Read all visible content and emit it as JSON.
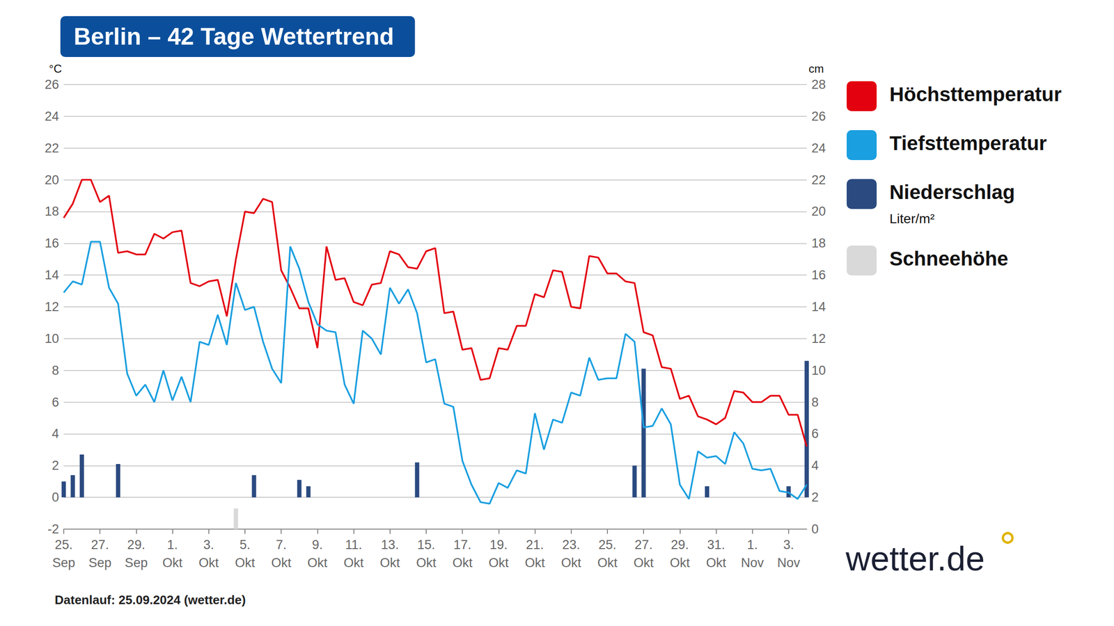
{
  "chart_data": {
    "type": "line",
    "title": "Berlin – 42 Tage Wettertrend",
    "annotations": [
      "Datenlauf: 25.09.2024 (wetter.de)",
      "wetter.de"
    ],
    "ylabel": "°C",
    "y2label": "cm",
    "categories": [
      "25.\nSep",
      null,
      null,
      null,
      "27.\nSep",
      null,
      null,
      null,
      "29.\nSep",
      null,
      null,
      null,
      "1.\nOkt",
      null,
      null,
      null,
      "3.\nOkt",
      null,
      null,
      null,
      "5.\nOkt",
      null,
      null,
      null,
      "7.\nOkt",
      null,
      null,
      null,
      "9.\nOkt",
      null,
      null,
      null,
      "11.\nOkt",
      null,
      null,
      null,
      "13.\nOkt",
      null,
      null,
      null,
      "15.\nOkt",
      null,
      null,
      null,
      "17.\nOkt",
      null,
      null,
      null,
      "19.\nOkt",
      null,
      null,
      null,
      "21.\nOkt",
      null,
      null,
      null,
      "23.\nOkt",
      null,
      null,
      null,
      "25.\nOkt",
      null,
      null,
      null,
      "27.\nOkt",
      null,
      null,
      null,
      "29.\nOkt",
      null,
      null,
      null,
      "31.\nOkt",
      null,
      null,
      null,
      "1.\nNov",
      null,
      null,
      null,
      "3.\nNov",
      null,
      null
    ],
    "series": [
      {
        "name": "Niederschlag",
        "unit": "Liter/m²",
        "type": "bar",
        "color": "#2a4a80",
        "values": [
          1.0,
          1.4,
          2.7,
          null,
          null,
          null,
          2.1,
          null,
          null,
          null,
          null,
          null,
          null,
          null,
          null,
          null,
          null,
          null,
          null,
          null,
          null,
          1.4,
          null,
          null,
          null,
          null,
          1.1,
          0.7,
          null,
          null,
          null,
          null,
          null,
          null,
          null,
          null,
          null,
          null,
          null,
          2.2,
          null,
          null,
          null,
          null,
          null,
          null,
          null,
          null,
          null,
          null,
          null,
          null,
          null,
          null,
          null,
          null,
          null,
          null,
          null,
          null,
          null,
          null,
          null,
          2.0,
          8.1,
          null,
          null,
          null,
          null,
          null,
          null,
          0.7,
          null,
          null,
          null,
          null,
          null,
          null,
          null,
          null,
          0.7,
          null,
          8.6
        ]
      },
      {
        "name": "Schneehöhe",
        "type": "bar",
        "color": "#d9d9d9",
        "axis": "y2",
        "values": [
          null,
          null,
          null,
          null,
          null,
          null,
          null,
          null,
          null,
          null,
          null,
          null,
          null,
          null,
          null,
          null,
          null,
          null,
          null,
          1.3,
          null,
          null,
          null,
          null,
          null,
          null,
          null,
          null,
          null,
          null,
          null,
          null,
          null,
          null,
          null,
          null,
          null,
          null,
          null,
          null,
          null,
          null,
          null,
          null,
          null,
          null,
          null,
          null,
          null,
          null,
          null,
          null,
          null,
          null,
          null,
          null,
          null,
          null,
          null,
          null,
          null,
          null,
          null,
          null,
          null,
          null,
          null,
          null,
          null,
          null,
          null,
          null,
          null,
          null,
          null,
          null,
          null,
          null,
          null,
          null,
          null,
          null,
          null
        ]
      },
      {
        "name": "Höchsttemperatur",
        "type": "line",
        "color": "#e3000f",
        "values": [
          17.6,
          18.5,
          20.0,
          20.0,
          18.6,
          19.0,
          15.4,
          15.5,
          15.3,
          15.3,
          16.6,
          16.3,
          16.7,
          16.8,
          13.5,
          13.3,
          13.6,
          13.7,
          11.4,
          15.0,
          18.0,
          17.9,
          18.8,
          18.6,
          14.3,
          13.2,
          11.9,
          11.9,
          9.4,
          15.8,
          13.7,
          13.8,
          12.3,
          12.1,
          13.4,
          13.5,
          15.5,
          15.3,
          14.5,
          14.4,
          15.5,
          15.7,
          11.6,
          11.7,
          9.3,
          9.4,
          7.4,
          7.5,
          9.4,
          9.3,
          10.8,
          10.8,
          12.8,
          12.6,
          14.3,
          14.2,
          12.0,
          11.9,
          15.2,
          15.1,
          14.1,
          14.1,
          13.6,
          13.5,
          10.4,
          10.2,
          8.2,
          8.1,
          6.2,
          6.4,
          5.1,
          4.9,
          4.6,
          5.0,
          6.7,
          6.6,
          6.0,
          6.0,
          6.4,
          6.4,
          5.2,
          5.2,
          3.2
        ]
      },
      {
        "name": "Tiefsttemperatur",
        "type": "line",
        "color": "#1a9fe0",
        "values": [
          12.9,
          13.6,
          13.4,
          16.1,
          16.1,
          13.2,
          12.2,
          7.8,
          6.4,
          7.1,
          6.0,
          8.0,
          6.1,
          7.6,
          6.0,
          9.8,
          9.6,
          11.5,
          9.6,
          13.5,
          11.8,
          12.0,
          9.8,
          8.1,
          7.2,
          15.8,
          14.4,
          12.3,
          10.9,
          10.5,
          10.4,
          7.1,
          5.9,
          10.5,
          10.0,
          9.0,
          13.2,
          12.2,
          13.1,
          11.6,
          8.5,
          8.7,
          5.9,
          5.7,
          2.3,
          0.8,
          -0.3,
          -0.4,
          0.9,
          0.6,
          1.7,
          1.5,
          5.3,
          3.0,
          4.9,
          4.7,
          6.6,
          6.4,
          8.8,
          7.4,
          7.5,
          7.5,
          10.3,
          9.8,
          4.4,
          4.5,
          5.6,
          4.6,
          0.8,
          -0.1,
          2.9,
          2.5,
          2.6,
          2.1,
          4.1,
          3.4,
          1.8,
          1.7,
          1.8,
          0.4,
          0.3,
          -0.1,
          0.8
        ]
      }
    ],
    "ylim": [
      -2,
      26
    ],
    "yticks": [
      -2,
      0,
      2,
      4,
      6,
      8,
      10,
      12,
      14,
      16,
      18,
      20,
      22,
      24,
      26
    ],
    "y2lim": [
      0,
      28
    ],
    "y2ticks": [
      0,
      2,
      4,
      6,
      8,
      10,
      12,
      14,
      16,
      18,
      20,
      22,
      24,
      26,
      28
    ],
    "grid": true,
    "legend": "right"
  }
}
